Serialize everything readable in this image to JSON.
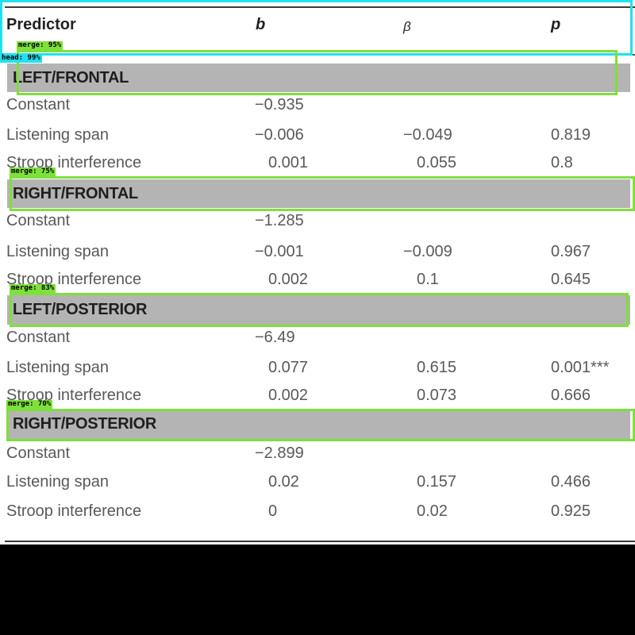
{
  "table": {
    "headers": {
      "predictor": "Predictor",
      "b": "b",
      "beta": "β",
      "p": "p"
    },
    "sections": [
      {
        "label": "LEFT/FRONTAL",
        "rows": [
          {
            "predictor": "Constant",
            "b": "−0.935",
            "beta": "",
            "p": ""
          },
          {
            "predictor": "Listening span",
            "b": "−0.006",
            "beta": "−0.049",
            "p": "0.819"
          },
          {
            "predictor": "Stroop interference",
            "b": "0.001",
            "beta": "0.055",
            "p": "0.8"
          }
        ]
      },
      {
        "label": "RIGHT/FRONTAL",
        "rows": [
          {
            "predictor": "Constant",
            "b": "−1.285",
            "beta": "",
            "p": ""
          },
          {
            "predictor": "Listening span",
            "b": "−0.001",
            "beta": "−0.009",
            "p": "0.967"
          },
          {
            "predictor": "Stroop interference",
            "b": "0.002",
            "beta": "0.1",
            "p": "0.645"
          }
        ]
      },
      {
        "label": "LEFT/POSTERIOR",
        "rows": [
          {
            "predictor": "Constant",
            "b": "−6.49",
            "beta": "",
            "p": ""
          },
          {
            "predictor": "Listening span",
            "b": "0.077",
            "beta": "0.615",
            "p": "0.001***"
          },
          {
            "predictor": "Stroop interference",
            "b": "0.002",
            "beta": "0.073",
            "p": "0.666"
          }
        ]
      },
      {
        "label": "RIGHT/POSTERIOR",
        "rows": [
          {
            "predictor": "Constant",
            "b": "−2.899",
            "beta": "",
            "p": ""
          },
          {
            "predictor": "Listening span",
            "b": "0.02",
            "beta": "0.157",
            "p": "0.466"
          },
          {
            "predictor": "Stroop interference",
            "b": "0",
            "beta": "0.02",
            "p": "0.925"
          }
        ]
      }
    ]
  },
  "annotations": [
    {
      "label": "head: 99%",
      "color": "#22e0ec"
    },
    {
      "label": "merge: 95%",
      "color": "#7ee03a"
    },
    {
      "label": "merge: 75%",
      "color": "#7ee03a"
    },
    {
      "label": "merge: 83%",
      "color": "#7ee03a"
    },
    {
      "label": "merge: 70%",
      "color": "#7ee03a"
    }
  ]
}
